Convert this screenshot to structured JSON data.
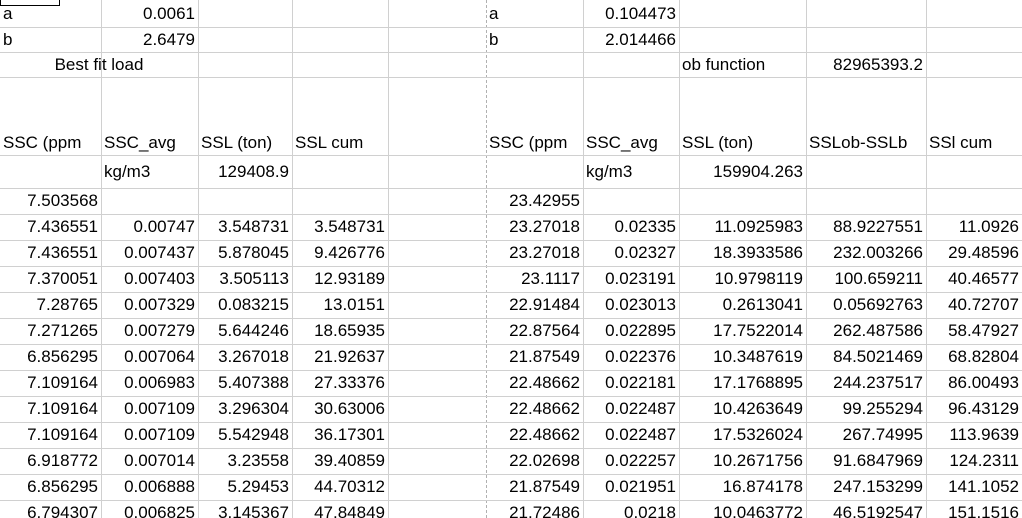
{
  "left": {
    "param_a": {
      "label": "a",
      "value": "0.0061"
    },
    "param_b": {
      "label": "b",
      "value": "2.6479"
    },
    "best_fit_label": "Best fit load",
    "headers": [
      "SSC (ppm",
      "SSC_avg",
      "SSL (ton)",
      "SSL cum"
    ],
    "units": {
      "ssc_avg": "kg/m3",
      "ssl_total": "129408.9"
    },
    "rows": [
      [
        "7.503568",
        "",
        "",
        ""
      ],
      [
        "7.436551",
        "0.00747",
        "3.548731",
        "3.548731"
      ],
      [
        "7.436551",
        "0.007437",
        "5.878045",
        "9.426776"
      ],
      [
        "7.370051",
        "0.007403",
        "3.505113",
        "12.93189"
      ],
      [
        "7.28765",
        "0.007329",
        "0.083215",
        "13.0151"
      ],
      [
        "7.271265",
        "0.007279",
        "5.644246",
        "18.65935"
      ],
      [
        "6.856295",
        "0.007064",
        "3.267018",
        "21.92637"
      ],
      [
        "7.109164",
        "0.006983",
        "5.407388",
        "27.33376"
      ],
      [
        "7.109164",
        "0.007109",
        "3.296304",
        "30.63006"
      ],
      [
        "7.109164",
        "0.007109",
        "5.542948",
        "36.17301"
      ],
      [
        "6.918772",
        "0.007014",
        "3.23558",
        "39.40859"
      ],
      [
        "6.856295",
        "0.006888",
        "5.29453",
        "44.70312"
      ],
      [
        "6.794307",
        "0.006825",
        "3.145367",
        "47.84849"
      ]
    ]
  },
  "right": {
    "param_a": {
      "label": "a",
      "value": "0.104473"
    },
    "param_b": {
      "label": "b",
      "value": "2.014466"
    },
    "ob_function": {
      "label": "ob function",
      "value": "82965393.2"
    },
    "headers": [
      "SSC (ppm",
      "SSC_avg",
      "SSL (ton)",
      "SSLob-SSLb",
      "SSl cum"
    ],
    "units": {
      "ssc_avg": "kg/m3",
      "ssl_total": "159904.263"
    },
    "rows": [
      [
        "23.42955",
        "",
        "",
        "",
        ""
      ],
      [
        "23.27018",
        "0.02335",
        "11.0925983",
        "88.9227551",
        "11.0926"
      ],
      [
        "23.27018",
        "0.02327",
        "18.3933586",
        "232.003266",
        "29.48596"
      ],
      [
        "23.1117",
        "0.023191",
        "10.9798119",
        "100.659211",
        "40.46577"
      ],
      [
        "22.91484",
        "0.023013",
        "0.2613041",
        "0.05692763",
        "40.72707"
      ],
      [
        "22.87564",
        "0.022895",
        "17.7522014",
        "262.487586",
        "58.47927"
      ],
      [
        "21.87549",
        "0.022376",
        "10.3487619",
        "84.5021469",
        "68.82804"
      ],
      [
        "22.48662",
        "0.022181",
        "17.1768895",
        "244.237517",
        "86.00493"
      ],
      [
        "22.48662",
        "0.022487",
        "10.4263649",
        "99.255294",
        "96.43129"
      ],
      [
        "22.48662",
        "0.022487",
        "17.5326024",
        "267.74995",
        "113.9639"
      ],
      [
        "22.02698",
        "0.022257",
        "10.2671756",
        "91.6847969",
        "124.2311"
      ],
      [
        "21.87549",
        "0.021951",
        "16.874178",
        "247.153299",
        "141.1052"
      ],
      [
        "21.72486",
        "0.0218",
        "10.0463772",
        "46.5192547",
        "151.1516"
      ]
    ]
  }
}
